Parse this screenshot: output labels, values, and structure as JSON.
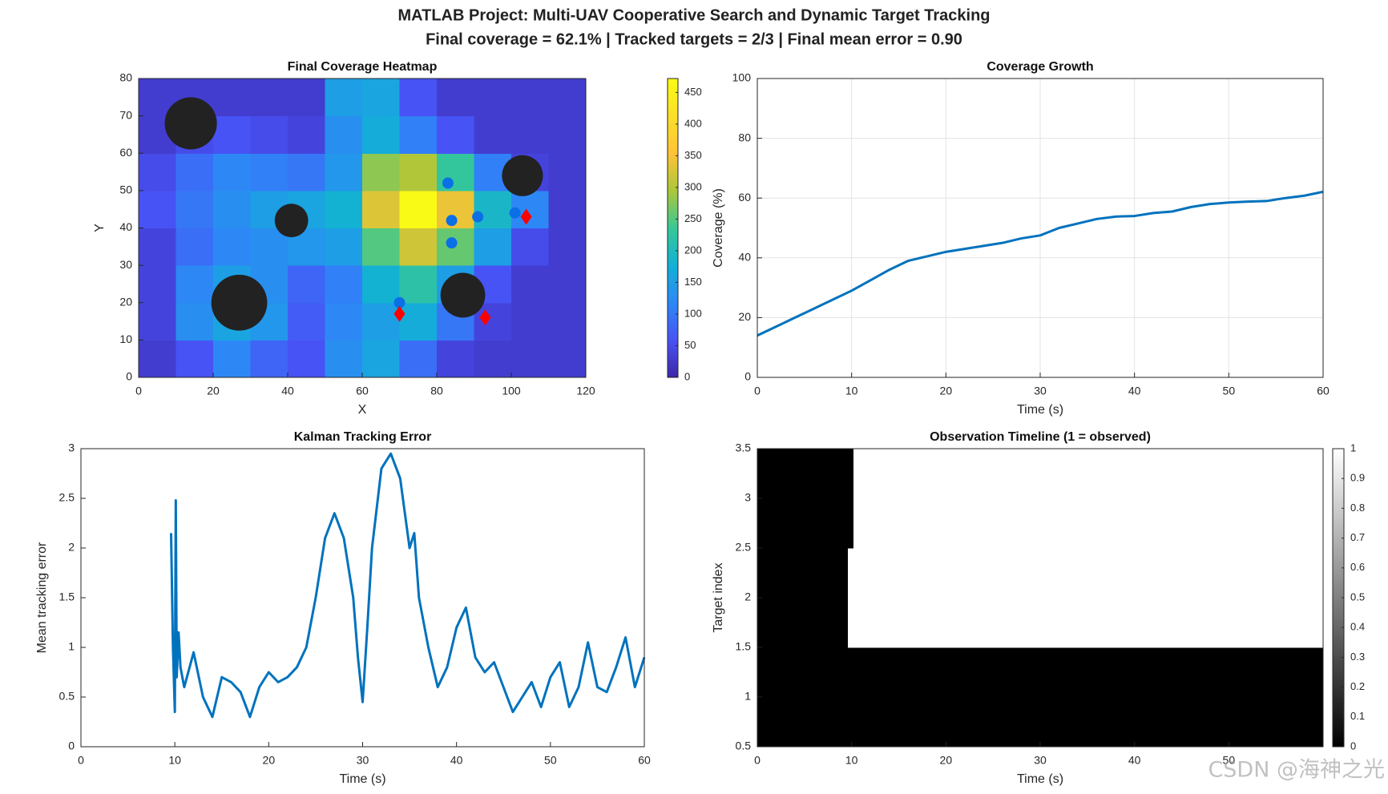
{
  "header": {
    "title": "MATLAB Project: Multi-UAV Cooperative Search and Dynamic Target Tracking",
    "subtitle": "Final coverage = 62.1% | Tracked targets = 2/3 | Final mean error = 0.90",
    "watermark": "CSDN @海神之光"
  },
  "chart_data": [
    {
      "type": "heatmap",
      "title": "Final Coverage Heatmap",
      "xlabel": "X",
      "ylabel": "Y",
      "xlim": [
        0,
        120
      ],
      "ylim": [
        0,
        80
      ],
      "xticks": [
        0,
        20,
        40,
        60,
        80,
        100,
        120
      ],
      "yticks": [
        0,
        10,
        20,
        30,
        40,
        50,
        60,
        70,
        80
      ],
      "colormap": "parula",
      "clim": [
        0,
        472
      ],
      "cticks": [
        0,
        50,
        100,
        150,
        200,
        250,
        300,
        350,
        400,
        450
      ],
      "z": [
        [
          30,
          60,
          120,
          80,
          60,
          130,
          160,
          90,
          40,
          30,
          30,
          30
        ],
        [
          40,
          130,
          160,
          140,
          70,
          120,
          150,
          170,
          100,
          40,
          30,
          30
        ],
        [
          40,
          120,
          150,
          130,
          80,
          110,
          180,
          220,
          150,
          60,
          30,
          30
        ],
        [
          40,
          90,
          120,
          130,
          140,
          150,
          250,
          320,
          260,
          150,
          50,
          30
        ],
        [
          60,
          100,
          130,
          150,
          160,
          180,
          330,
          470,
          340,
          190,
          120,
          30
        ],
        [
          50,
          90,
          120,
          110,
          100,
          140,
          280,
          300,
          230,
          110,
          40,
          30
        ],
        [
          30,
          50,
          60,
          50,
          40,
          130,
          170,
          110,
          60,
          30,
          30,
          30
        ],
        [
          30,
          30,
          30,
          30,
          30,
          150,
          160,
          60,
          30,
          30,
          30,
          30
        ]
      ],
      "obstacles": {
        "x": [
          14,
          41,
          27,
          87,
          103
        ],
        "y": [
          68,
          42,
          20,
          22,
          54
        ],
        "r": [
          7,
          4.5,
          7.5,
          6,
          5.5
        ],
        "color": "#222222"
      },
      "uavs": {
        "x": [
          83,
          84,
          91,
          84,
          101,
          70
        ],
        "y": [
          52,
          42,
          43,
          36,
          44,
          20
        ],
        "color": "#0b6fe6"
      },
      "targets": {
        "x": [
          104,
          70,
          93
        ],
        "y": [
          43,
          17,
          16
        ],
        "color": "#ff0000"
      }
    },
    {
      "type": "line",
      "title": "Coverage Growth",
      "xlabel": "Time (s)",
      "ylabel": "Coverage (%)",
      "xlim": [
        0,
        60
      ],
      "ylim": [
        0,
        100
      ],
      "xticks": [
        0,
        10,
        20,
        30,
        40,
        50,
        60
      ],
      "yticks": [
        0,
        20,
        40,
        60,
        80,
        100
      ],
      "grid": true,
      "color": "#0072bd",
      "x": [
        0,
        2,
        4,
        6,
        8,
        10,
        12,
        14,
        16,
        18,
        20,
        22,
        24,
        26,
        28,
        30,
        32,
        34,
        36,
        38,
        40,
        42,
        44,
        46,
        48,
        50,
        52,
        54,
        56,
        58,
        60
      ],
      "values": [
        14,
        17,
        20,
        23,
        26,
        29,
        32.5,
        36,
        39,
        40.5,
        42,
        43,
        44,
        45,
        46.5,
        47.5,
        50,
        51.5,
        53,
        53.8,
        54,
        55,
        55.5,
        57,
        58,
        58.5,
        58.8,
        59,
        60,
        60.8,
        62.1
      ]
    },
    {
      "type": "line",
      "title": "Kalman Tracking Error",
      "xlabel": "Time (s)",
      "ylabel": "Mean tracking error",
      "xlim": [
        0,
        60
      ],
      "ylim": [
        0,
        3
      ],
      "xticks": [
        0,
        10,
        20,
        30,
        40,
        50,
        60
      ],
      "yticks": [
        0,
        0.5,
        1,
        1.5,
        2,
        2.5,
        3
      ],
      "grid": false,
      "color": "#0072bd",
      "x": [
        9.6,
        9.8,
        10.0,
        10.1,
        10.2,
        10.4,
        10.6,
        11,
        12,
        13,
        14,
        15,
        16,
        17,
        18,
        19,
        20,
        21,
        22,
        23,
        24,
        25,
        26,
        27,
        28,
        29,
        29.5,
        30,
        30.5,
        31,
        32,
        33,
        34,
        35,
        35.5,
        36,
        37,
        38,
        39,
        40,
        41,
        42,
        43,
        44,
        45,
        46,
        47,
        48,
        49,
        50,
        51,
        52,
        53,
        54,
        55,
        56,
        57,
        58,
        59,
        60
      ],
      "values": [
        2.15,
        1.0,
        0.35,
        2.48,
        0.7,
        1.15,
        0.8,
        0.6,
        0.95,
        0.5,
        0.3,
        0.7,
        0.65,
        0.55,
        0.3,
        0.6,
        0.75,
        0.65,
        0.7,
        0.8,
        1.0,
        1.5,
        2.1,
        2.35,
        2.1,
        1.5,
        0.9,
        0.45,
        1.2,
        2.0,
        2.8,
        2.95,
        2.7,
        2.0,
        2.15,
        1.5,
        1.0,
        0.6,
        0.8,
        1.2,
        1.4,
        0.9,
        0.75,
        0.85,
        0.6,
        0.35,
        0.5,
        0.65,
        0.4,
        0.7,
        0.85,
        0.4,
        0.6,
        1.05,
        0.6,
        0.55,
        0.8,
        1.1,
        0.6,
        0.9
      ]
    },
    {
      "type": "timeline",
      "title": "Observation Timeline (1 = observed)",
      "xlabel": "Time (s)",
      "ylabel": "Target index",
      "xlim": [
        0,
        60
      ],
      "ylim": [
        0.5,
        3.5
      ],
      "xticks": [
        0,
        10,
        20,
        30,
        40,
        50
      ],
      "yticks": [
        0.5,
        1,
        1.5,
        2,
        2.5,
        3,
        3.5
      ],
      "colormap": "gray",
      "clim": [
        0,
        1
      ],
      "cticks": [
        0,
        0.1,
        0.2,
        0.3,
        0.4,
        0.5,
        0.6,
        0.7,
        0.8,
        0.9,
        1
      ],
      "x_edges": [
        0,
        9.6,
        10.2,
        60
      ],
      "z": [
        [
          0,
          0,
          0
        ],
        [
          0,
          1,
          1
        ],
        [
          0,
          0,
          1
        ]
      ]
    }
  ]
}
